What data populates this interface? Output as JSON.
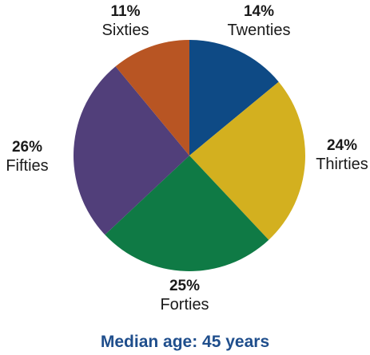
{
  "chart_data": {
    "type": "pie",
    "start_angle_deg": 0,
    "direction": "clockwise",
    "slices": [
      {
        "label": "Twenties",
        "value": 14,
        "display": "14%",
        "color": "#0e4a85"
      },
      {
        "label": "Thirties",
        "value": 24,
        "display": "24%",
        "color": "#d3b01f"
      },
      {
        "label": "Forties",
        "value": 25,
        "display": "25%",
        "color": "#0f7a45"
      },
      {
        "label": "Fifties",
        "value": 26,
        "display": "26%",
        "color": "#513f7a"
      },
      {
        "label": "Sixties",
        "value": 11,
        "display": "11%",
        "color": "#b85523"
      }
    ],
    "caption": "Median age: 45 years"
  }
}
